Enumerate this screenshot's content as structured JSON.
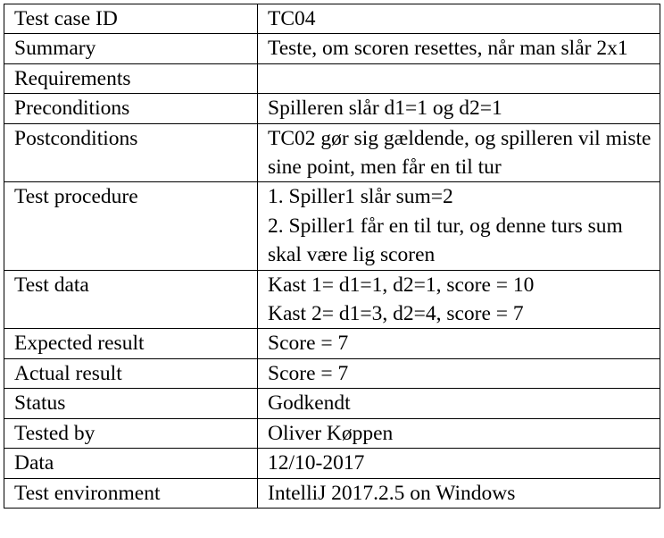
{
  "rows": [
    {
      "label": "Test case ID",
      "lines": [
        "TC04"
      ]
    },
    {
      "label": "Summary",
      "lines": [
        "Teste, om scoren resettes, når man slår 2x1"
      ]
    },
    {
      "label": "Requirements",
      "lines": [
        ""
      ]
    },
    {
      "label": "Preconditions",
      "lines": [
        "Spilleren slår d1=1 og d2=1"
      ]
    },
    {
      "label": "Postconditions",
      "lines": [
        "TC02 gør sig gældende, og spilleren vil miste sine point, men får en til tur"
      ]
    },
    {
      "label": "Test procedure",
      "lines": [
        "1. Spiller1 slår sum=2",
        "2. Spiller1 får en til tur, og denne turs sum skal være lig scoren"
      ]
    },
    {
      "label": "Test data",
      "lines": [
        "Kast 1= d1=1, d2=1, score = 10",
        "Kast 2= d1=3, d2=4, score = 7"
      ]
    },
    {
      "label": "Expected result",
      "lines": [
        "Score = 7"
      ]
    },
    {
      "label": "Actual result",
      "lines": [
        "Score = 7"
      ]
    },
    {
      "label": "Status",
      "lines": [
        "Godkendt"
      ]
    },
    {
      "label": "Tested by",
      "lines": [
        "Oliver Køppen"
      ]
    },
    {
      "label": "Data",
      "lines": [
        "12/10-2017"
      ]
    },
    {
      "label": "Test environment",
      "lines": [
        "IntelliJ 2017.2.5 on Windows"
      ]
    }
  ]
}
